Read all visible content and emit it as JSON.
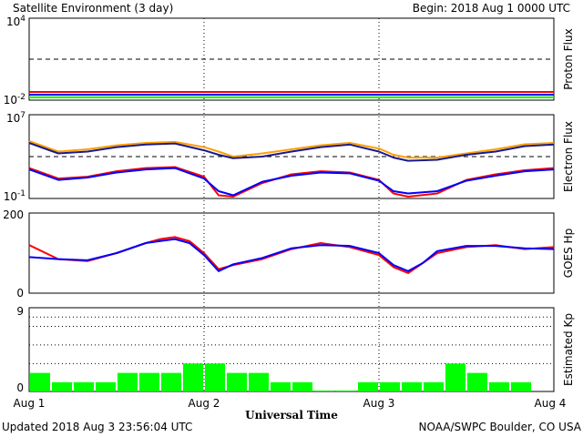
{
  "header": {
    "title": "Satellite Environment (3 day)",
    "begin": "Begin:  2018 Aug 1 0000 UTC"
  },
  "footer": {
    "updated": "Updated 2018 Aug  3 23:56:04 UTC",
    "credit": "NOAA/SWPC Boulder, CO USA"
  },
  "xaxis": {
    "label": "Universal Time",
    "ticks": [
      "Aug 1",
      "Aug 2",
      "Aug 3",
      "Aug 4"
    ]
  },
  "colors": {
    "red": "#ff0000",
    "blue": "#0000ff",
    "green": "#00ff00",
    "orange": "#ffa000",
    "navy": "#1a1a8c",
    "kp_bar": "#00ff00"
  },
  "chart_data": [
    {
      "type": "line",
      "ylabel": "Proton Flux",
      "yscale": "log",
      "ylim": [
        0.01,
        10000
      ],
      "yticks": [
        {
          "base": "10",
          "exp": "4"
        },
        {
          "base": "10",
          "exp": "-2"
        }
      ],
      "threshold": 10,
      "x": [
        0,
        12,
        24,
        36,
        48,
        60,
        72
      ],
      "series": [
        {
          "color": "red",
          "values": [
            0.04,
            0.04,
            0.04,
            0.04,
            0.04,
            0.04,
            0.04
          ]
        },
        {
          "color": "blue",
          "values": [
            0.025,
            0.025,
            0.025,
            0.025,
            0.025,
            0.025,
            0.025
          ]
        },
        {
          "color": "green",
          "values": [
            0.016,
            0.016,
            0.016,
            0.016,
            0.016,
            0.016,
            0.016
          ]
        }
      ]
    },
    {
      "type": "line",
      "ylabel": "Electron Flux",
      "yscale": "log",
      "ylim": [
        0.1,
        10000000
      ],
      "yticks": [
        {
          "base": "10",
          "exp": "7"
        },
        {
          "base": "10",
          "exp": "-1"
        }
      ],
      "threshold": 1000,
      "x": [
        0,
        4,
        8,
        12,
        16,
        20,
        24,
        26,
        28,
        32,
        36,
        40,
        44,
        48,
        50,
        52,
        56,
        60,
        64,
        68,
        72
      ],
      "series": [
        {
          "color": "orange",
          "values": [
            30000,
            3000,
            5000,
            12000,
            20000,
            25000,
            8000,
            3000,
            1000,
            2000,
            5000,
            12000,
            20000,
            6000,
            1500,
            800,
            800,
            2000,
            5000,
            15000,
            20000
          ]
        },
        {
          "color": "navy",
          "values": [
            20000,
            2000,
            3000,
            8000,
            14000,
            18000,
            4000,
            1500,
            700,
            1000,
            3000,
            8000,
            14000,
            3000,
            800,
            400,
            500,
            1500,
            3000,
            10000,
            14000
          ]
        },
        {
          "color": "red",
          "values": [
            80,
            8,
            12,
            40,
            80,
            100,
            12,
            0.2,
            0.15,
            3,
            20,
            40,
            30,
            6,
            0.3,
            0.15,
            0.3,
            6,
            20,
            50,
            80
          ]
        },
        {
          "color": "blue",
          "values": [
            60,
            6,
            10,
            30,
            60,
            80,
            8,
            0.5,
            0.2,
            4,
            15,
            30,
            25,
            5,
            0.5,
            0.3,
            0.5,
            5,
            15,
            40,
            60
          ]
        }
      ]
    },
    {
      "type": "line",
      "ylabel": "GOES Hp",
      "ylim": [
        0,
        200
      ],
      "yticks": [
        "200",
        "0"
      ],
      "x": [
        0,
        4,
        8,
        12,
        16,
        18,
        20,
        22,
        24,
        26,
        28,
        32,
        36,
        40,
        44,
        48,
        50,
        52,
        54,
        56,
        60,
        64,
        68,
        72
      ],
      "series": [
        {
          "color": "red",
          "values": [
            120,
            85,
            80,
            100,
            125,
            135,
            140,
            130,
            100,
            60,
            70,
            85,
            110,
            125,
            115,
            95,
            65,
            50,
            75,
            100,
            115,
            120,
            110,
            115
          ]
        },
        {
          "color": "blue",
          "values": [
            90,
            85,
            82,
            100,
            125,
            130,
            135,
            125,
            95,
            55,
            72,
            88,
            112,
            120,
            118,
            100,
            70,
            55,
            75,
            105,
            118,
            118,
            112,
            110
          ]
        }
      ]
    },
    {
      "type": "bar",
      "ylabel": "Estimated Kp",
      "ylim": [
        0,
        9
      ],
      "yticks": [
        "9",
        "0"
      ],
      "values": [
        2,
        1,
        1,
        1,
        2,
        2,
        2,
        3,
        3,
        2,
        2,
        1,
        1,
        0.1,
        0.1,
        1,
        1,
        1,
        1,
        3,
        2,
        1,
        1,
        0
      ]
    }
  ]
}
